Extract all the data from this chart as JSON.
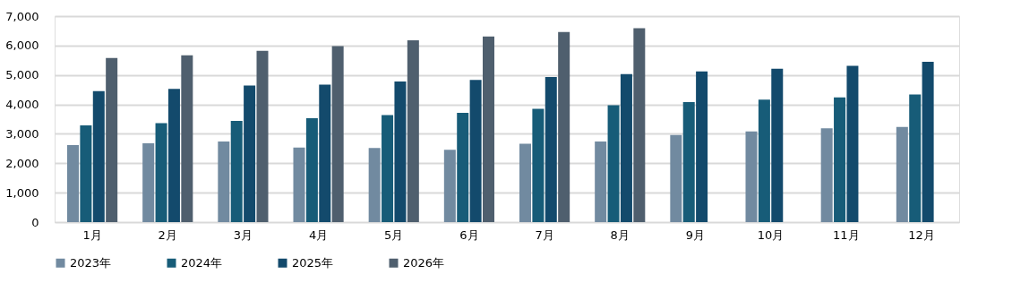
{
  "chart_data": {
    "type": "bar",
    "categories": [
      "1月",
      "2月",
      "3月",
      "4月",
      "5月",
      "6月",
      "7月",
      "8月",
      "9月",
      "10月",
      "11月",
      "12月"
    ],
    "series": [
      {
        "name": "2023年",
        "color": "#718aa0",
        "values": [
          2620,
          2680,
          2740,
          2530,
          2520,
          2460,
          2660,
          2740,
          2960,
          3080,
          3190,
          3230
        ]
      },
      {
        "name": "2024年",
        "color": "#175c78",
        "values": [
          3290,
          3360,
          3440,
          3530,
          3640,
          3710,
          3850,
          3970,
          4080,
          4160,
          4240,
          4340
        ]
      },
      {
        "name": "2025年",
        "color": "#134a6c",
        "values": [
          4450,
          4530,
          4640,
          4670,
          4780,
          4830,
          4930,
          5030,
          5120,
          5210,
          5310,
          5450
        ]
      },
      {
        "name": "2026年",
        "color": "#4f5f6e",
        "values": [
          5580,
          5670,
          5820,
          5980,
          6180,
          6310,
          6460,
          6590,
          null,
          null,
          null,
          null
        ]
      }
    ],
    "ylim": [
      0,
      7000
    ],
    "yticks": [
      {
        "value": 0,
        "label": "0"
      },
      {
        "value": 1000,
        "label": "1,000"
      },
      {
        "value": 2000,
        "label": "2,000"
      },
      {
        "value": 3000,
        "label": "3,000"
      },
      {
        "value": 4000,
        "label": "4,000"
      },
      {
        "value": 5000,
        "label": "5,000"
      },
      {
        "value": 6000,
        "label": "6,000"
      },
      {
        "value": 7000,
        "label": "7,000"
      }
    ],
    "grid": "y",
    "legend": "bottom"
  }
}
